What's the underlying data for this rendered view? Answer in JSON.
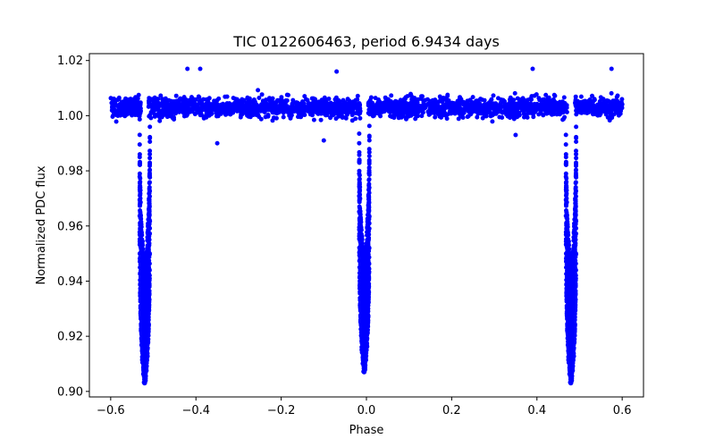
{
  "chart_data": {
    "type": "scatter",
    "title": "TIC 0122606463, period 6.9434 days",
    "xlabel": "Phase",
    "ylabel": "Normalized PDC flux",
    "xlim": [
      -0.65,
      0.65
    ],
    "ylim": [
      0.898,
      1.0225
    ],
    "xticks": [
      -0.6,
      -0.4,
      -0.2,
      0.0,
      0.2,
      0.4,
      0.6
    ],
    "xtick_labels": [
      "−0.6",
      "−0.4",
      "−0.2",
      "0.0",
      "0.2",
      "0.4",
      "0.6"
    ],
    "yticks": [
      0.9,
      0.92,
      0.94,
      0.96,
      0.98,
      1.0,
      1.02
    ],
    "ytick_labels": [
      "0.90",
      "0.92",
      "0.94",
      "0.96",
      "0.98",
      "1.00",
      "1.02"
    ],
    "grid": false,
    "marker_color": "#0000ff",
    "baseline": {
      "phase_range": [
        -0.6,
        0.6
      ],
      "flux_mean": 1.003,
      "flux_scatter": 0.0025
    },
    "eclipses": [
      {
        "center_phase": -0.52,
        "min_flux": 0.903,
        "half_width": 0.012
      },
      {
        "center_phase": -0.005,
        "min_flux": 0.907,
        "half_width": 0.012
      },
      {
        "center_phase": 0.48,
        "min_flux": 0.903,
        "half_width": 0.012
      }
    ],
    "outliers": [
      {
        "x": -0.42,
        "y": 1.017
      },
      {
        "x": -0.39,
        "y": 1.017
      },
      {
        "x": -0.07,
        "y": 1.016
      },
      {
        "x": 0.39,
        "y": 1.017
      },
      {
        "x": 0.575,
        "y": 1.017
      },
      {
        "x": -0.35,
        "y": 0.99
      },
      {
        "x": -0.1,
        "y": 0.991
      },
      {
        "x": 0.35,
        "y": 0.993
      }
    ]
  }
}
